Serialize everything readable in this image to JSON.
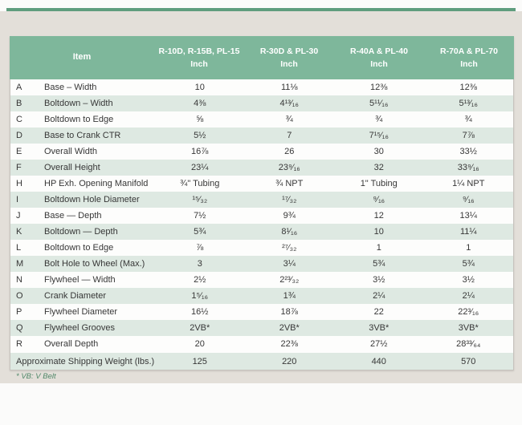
{
  "page": {
    "footnote": "* VB: V Belt",
    "accent_green": "#7eb79b",
    "stripe_green": "#dee9e2",
    "rule_green": "#5f9d7e"
  },
  "table": {
    "header": {
      "item_label": "Item",
      "columns": [
        {
          "models": "R-10D, R-15B, PL-15",
          "unit": "Inch"
        },
        {
          "models": "R-30D & PL-30",
          "unit": "Inch"
        },
        {
          "models": "R-40A & PL-40",
          "unit": "Inch"
        },
        {
          "models": "R-70A & PL-70",
          "unit": "Inch"
        }
      ]
    },
    "rows": [
      {
        "letter": "A",
        "label": "Base – Width",
        "values": [
          "10",
          "11⅛",
          "12⅜",
          "12⅜"
        ]
      },
      {
        "letter": "B",
        "label": "Boltdown – Width",
        "values": [
          "4⅜",
          "4¹³⁄₁₆",
          "5¹¹⁄₁₆",
          "5¹³⁄₁₆"
        ]
      },
      {
        "letter": "C",
        "label": "Boltdown to Edge",
        "values": [
          "⅝",
          "¾",
          "¾",
          "¾"
        ]
      },
      {
        "letter": "D",
        "label": "Base to Crank CTR",
        "values": [
          "5½",
          "7",
          "7¹⁵⁄₁₆",
          "7⅞"
        ]
      },
      {
        "letter": "E",
        "label": "Overall Width",
        "values": [
          "16⅞",
          "26",
          "30",
          "33½"
        ]
      },
      {
        "letter": "F",
        "label": "Overall Height",
        "values": [
          "23¼",
          "23⁹⁄₁₆",
          "32",
          "33⁹⁄₁₆"
        ]
      },
      {
        "letter": "H",
        "label": "HP Exh. Opening Manifold",
        "values": [
          "¾\" Tubing",
          "¾ NPT",
          "1\" Tubing",
          "1¼ NPT"
        ]
      },
      {
        "letter": "I",
        "label": "Boltdown Hole Diameter",
        "values": [
          "¹⁵⁄₃₂",
          "¹⁷⁄₃₂",
          "⁹⁄₁₆",
          "⁹⁄₁₆"
        ]
      },
      {
        "letter": "J",
        "label": "Base — Depth",
        "values": [
          "7½",
          "9¾",
          "12",
          "13¼"
        ]
      },
      {
        "letter": "K",
        "label": "Boltdown — Depth",
        "values": [
          "5¾",
          "8¹⁄₁₆",
          "10",
          "11¼"
        ]
      },
      {
        "letter": "L",
        "label": "Boltdown to Edge",
        "values": [
          "⅞",
          "²⁷⁄₃₂",
          "1",
          "1"
        ]
      },
      {
        "letter": "M",
        "label": "Bolt Hole to Wheel (Max.)",
        "values": [
          "3",
          "3¼",
          "5¾",
          "5¾"
        ]
      },
      {
        "letter": "N",
        "label": "Flywheel — Width",
        "values": [
          "2½",
          "2²³⁄₃₂",
          "3½",
          "3½"
        ]
      },
      {
        "letter": "O",
        "label": "Crank Diameter",
        "values": [
          "1⁵⁄₁₆",
          "1¾",
          "2¼",
          "2¼"
        ]
      },
      {
        "letter": "P",
        "label": "Flywheel Diameter",
        "values": [
          "16½",
          "18⅞",
          "22",
          "22³⁄₁₆"
        ]
      },
      {
        "letter": "Q",
        "label": "Flywheel Grooves",
        "values": [
          "2VB*",
          "2VB*",
          "3VB*",
          "3VB*"
        ]
      },
      {
        "letter": "R",
        "label": "Overall Depth",
        "values": [
          "20",
          "22⅜",
          "27½",
          "28³³⁄₆₄"
        ]
      }
    ],
    "footer": {
      "label": "Approximate Shipping Weight (lbs.)",
      "values": [
        "125",
        "220",
        "440",
        "570"
      ]
    }
  }
}
